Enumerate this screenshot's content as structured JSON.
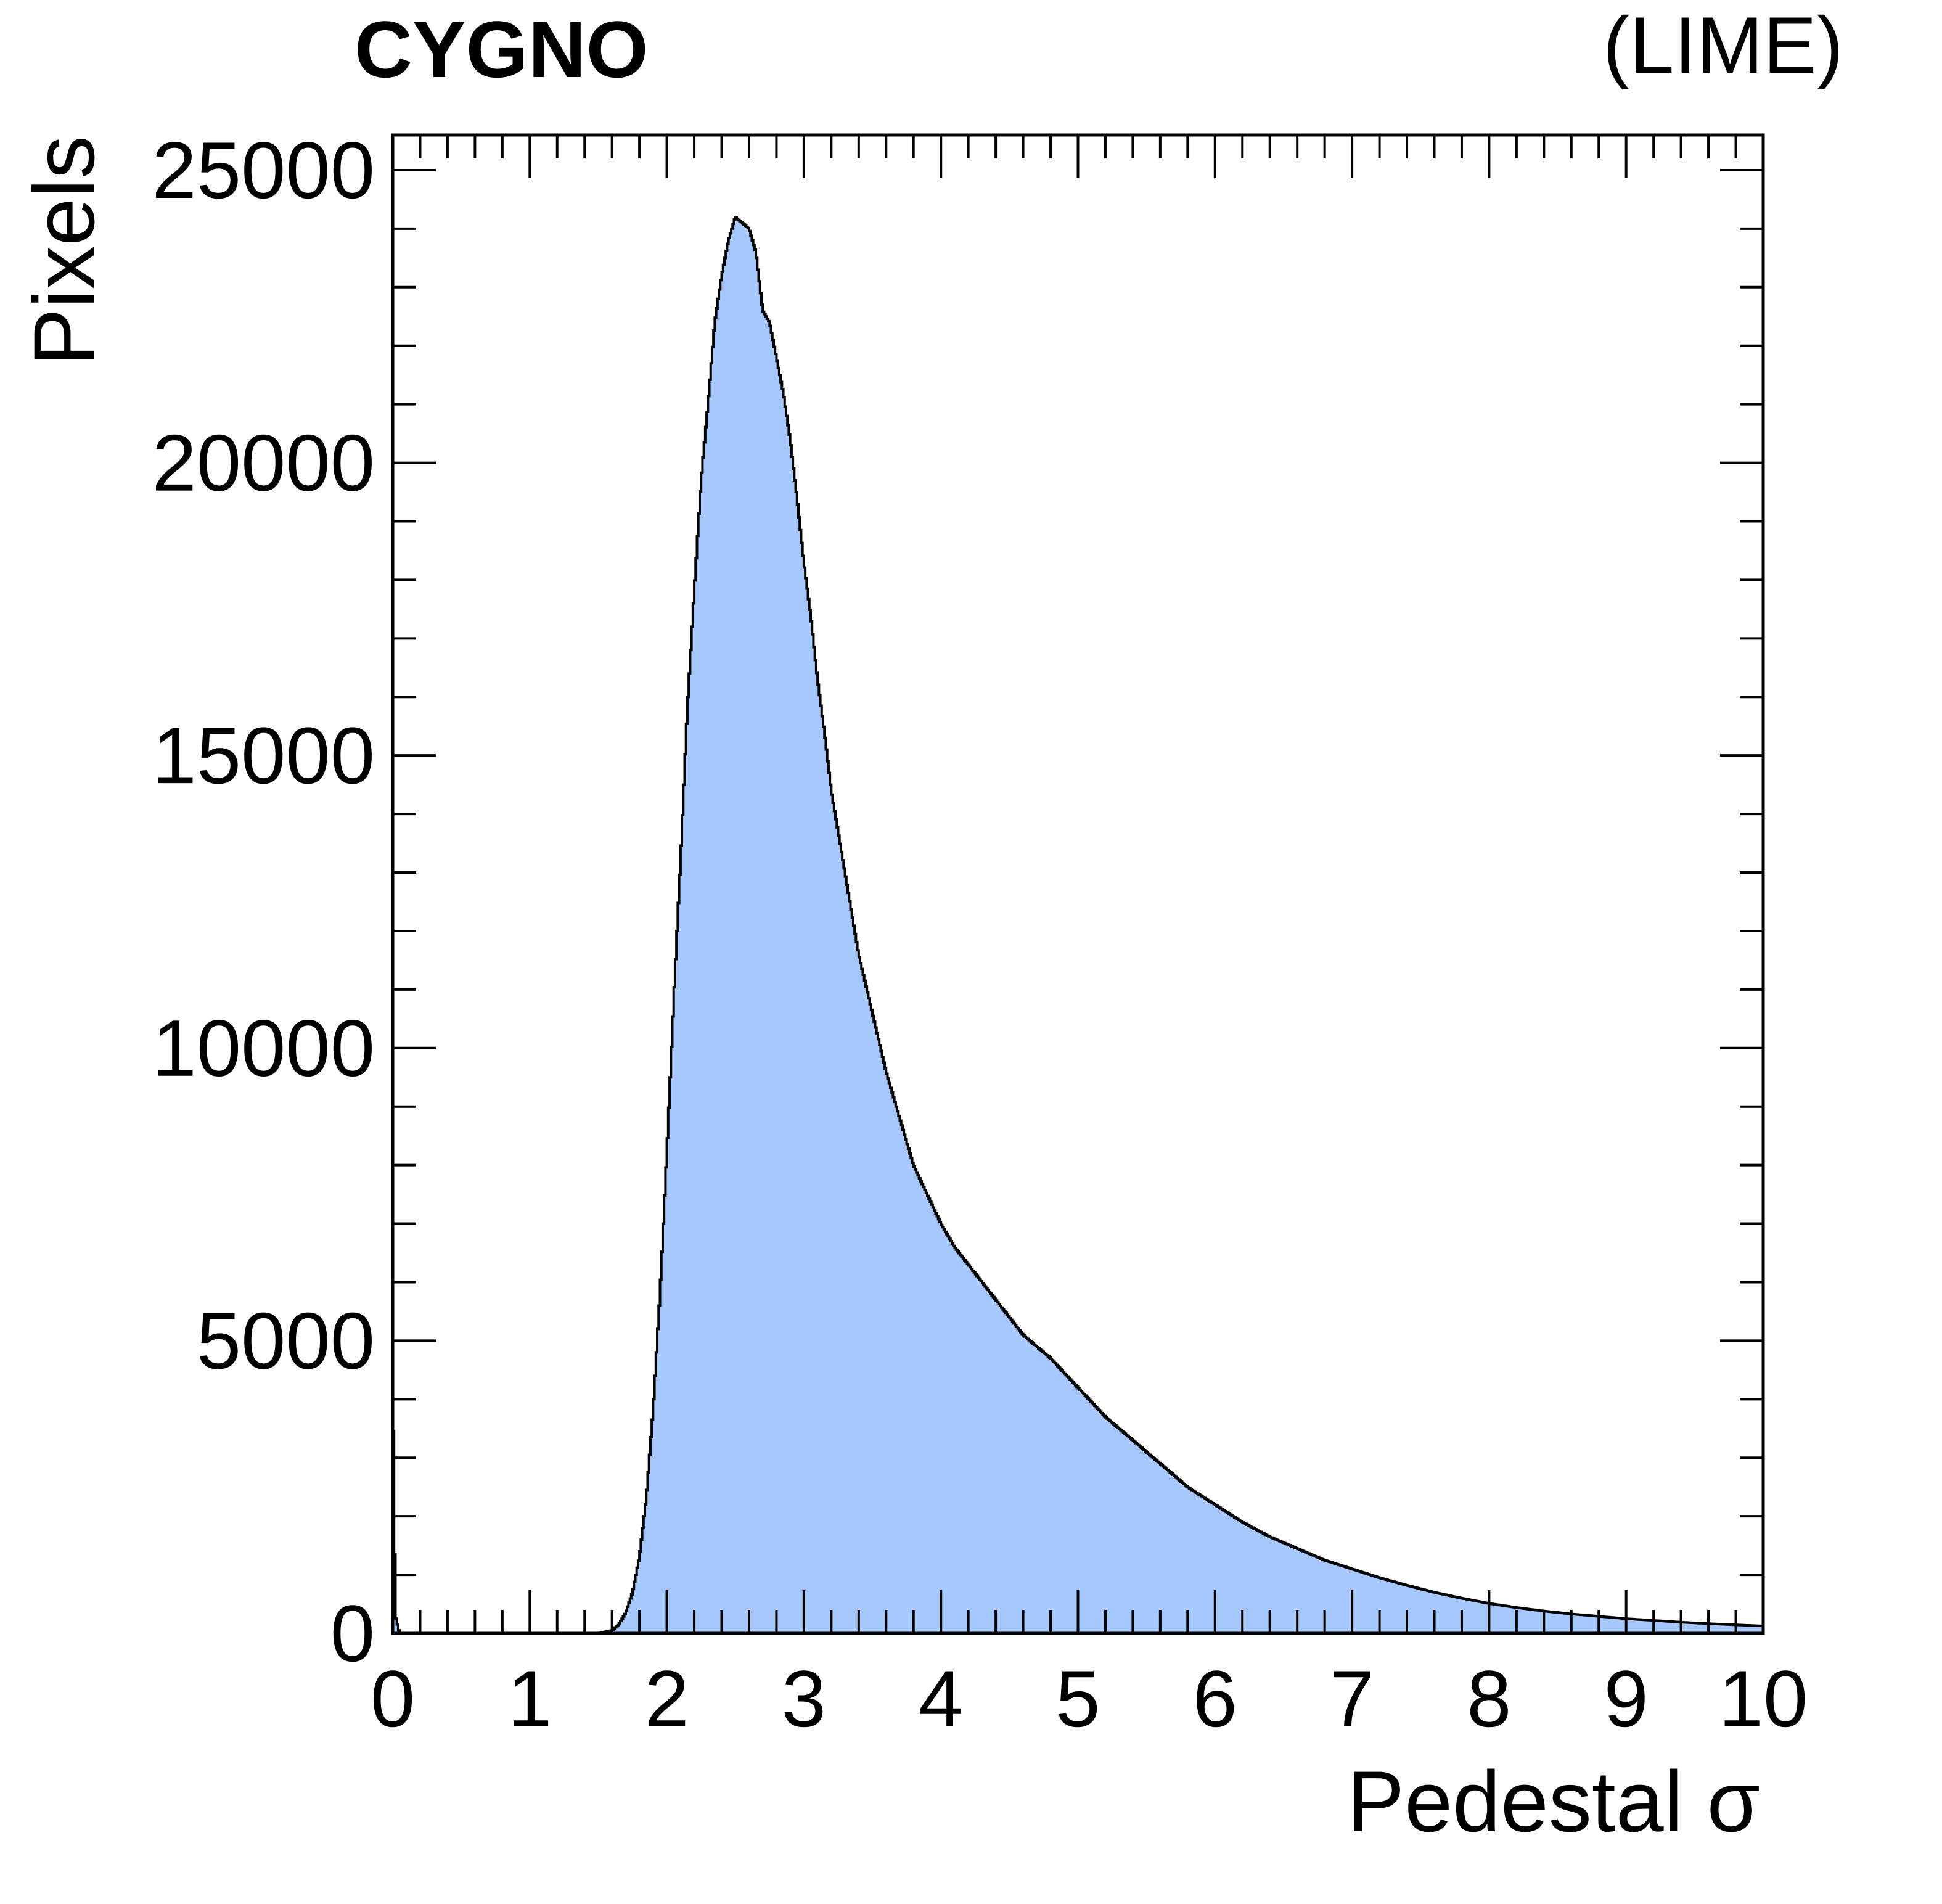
{
  "header": {
    "experiment": "CYGNO",
    "detector": "(LIME)"
  },
  "colors": {
    "fill": "#a6c8fc",
    "line": "#000000"
  },
  "chart_data": {
    "type": "area",
    "xlabel": "Pedestal σ",
    "ylabel": "Pixels",
    "xlim": [
      0,
      10
    ],
    "ylim": [
      0,
      25600
    ],
    "x_ticks": [
      0,
      1,
      2,
      3,
      4,
      5,
      6,
      7,
      8,
      9,
      10
    ],
    "x_tick_labels": [
      "0",
      "1",
      "2",
      "3",
      "4",
      "5",
      "6",
      "7",
      "8",
      "9",
      "10"
    ],
    "y_ticks": [
      0,
      5000,
      10000,
      15000,
      20000,
      25000
    ],
    "y_tick_labels": [
      "0",
      "5000",
      "10000",
      "15000",
      "20000",
      "25000"
    ],
    "grid": false,
    "series": [
      {
        "x": [
          0.0,
          0.02,
          0.05,
          1.5,
          1.6,
          1.65,
          1.7,
          1.75,
          1.8,
          1.85,
          1.9,
          1.95,
          2.0,
          2.05,
          2.1,
          2.15,
          2.2,
          2.25,
          2.3,
          2.35,
          2.4,
          2.45,
          2.5,
          2.55,
          2.6,
          2.65,
          2.7,
          2.75,
          2.8,
          2.85,
          2.9,
          2.95,
          3.0,
          3.05,
          3.1,
          3.15,
          3.2,
          3.3,
          3.4,
          3.5,
          3.6,
          3.7,
          3.8,
          3.9,
          4.0,
          4.1,
          4.2,
          4.3,
          4.4,
          4.5,
          4.6,
          4.8,
          5.0,
          5.2,
          5.4,
          5.6,
          5.8,
          6.0,
          6.2,
          6.4,
          6.6,
          6.8,
          7.0,
          7.2,
          7.4,
          7.6,
          7.8,
          8.0,
          8.2,
          8.4,
          8.6,
          8.8,
          9.0,
          9.2,
          9.4,
          9.6,
          9.8,
          10.0
        ],
        "y": [
          4500,
          300,
          0,
          0,
          50,
          150,
          350,
          700,
          1300,
          2300,
          3800,
          5800,
          8200,
          10800,
          13200,
          15800,
          17800,
          19700,
          21000,
          22400,
          23200,
          23800,
          24200,
          24100,
          24000,
          23600,
          22600,
          22400,
          21800,
          21200,
          20400,
          19400,
          18300,
          17400,
          16300,
          15400,
          14400,
          13000,
          11600,
          10600,
          9600,
          8800,
          8000,
          7500,
          7000,
          6600,
          6300,
          6000,
          5700,
          5400,
          5100,
          4700,
          4200,
          3700,
          3300,
          2900,
          2500,
          2200,
          1900,
          1650,
          1450,
          1250,
          1100,
          950,
          820,
          700,
          600,
          510,
          440,
          380,
          330,
          290,
          250,
          220,
          190,
          165,
          145,
          125
        ]
      }
    ]
  }
}
